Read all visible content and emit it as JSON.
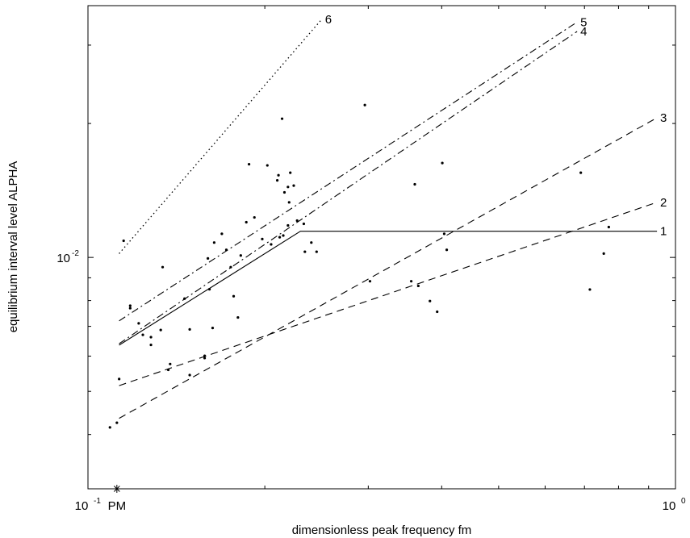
{
  "chart_data": {
    "type": "line",
    "title": "",
    "xlabel": "dimensionless peak frequency fm",
    "ylabel": "equilibrium interval level ALPHA",
    "xscale": "log",
    "yscale": "log",
    "xlim": [
      0.1,
      1.0
    ],
    "ylim": [
      0.00302,
      0.0368
    ],
    "grid": false,
    "legend": "none (lines labeled 1-6 at right end)",
    "x_ticks": [
      {
        "value": 0.1,
        "base": "10",
        "exp": "-1"
      },
      {
        "value": 1.0,
        "base": "10",
        "exp": "0"
      }
    ],
    "y_ticks": [
      {
        "value": 0.01,
        "base": "10",
        "exp": "-2"
      }
    ],
    "series": [
      {
        "label": "1",
        "style": "solid",
        "x": [
          0.113,
          0.23,
          0.93
        ],
        "y": [
          0.00635,
          0.01145,
          0.01145
        ]
      },
      {
        "label": "2",
        "style": "dashed",
        "x": [
          0.113,
          0.93
        ],
        "y": [
          0.00515,
          0.0133
        ]
      },
      {
        "label": "3",
        "style": "dashed",
        "x": [
          0.113,
          0.93
        ],
        "y": [
          0.00435,
          0.0206
        ]
      },
      {
        "label": "4",
        "style": "dash-dot",
        "x": [
          0.113,
          0.68
        ],
        "y": [
          0.0064,
          0.0322
        ]
      },
      {
        "label": "5",
        "style": "dash-dot",
        "x": [
          0.113,
          0.68
        ],
        "y": [
          0.0072,
          0.0338
        ]
      },
      {
        "label": "6",
        "style": "dotted",
        "x": [
          0.113,
          0.25
        ],
        "y": [
          0.0102,
          0.0343
        ]
      }
    ],
    "scatter": {
      "x": [
        0.109,
        0.113,
        0.115,
        0.112,
        0.118,
        0.118,
        0.122,
        0.124,
        0.128,
        0.128,
        0.133,
        0.134,
        0.137,
        0.138,
        0.146,
        0.149,
        0.149,
        0.158,
        0.158,
        0.163,
        0.161,
        0.16,
        0.164,
        0.169,
        0.172,
        0.175,
        0.177,
        0.18,
        0.182,
        0.186,
        0.188,
        0.192,
        0.198,
        0.202,
        0.205,
        0.21,
        0.211,
        0.212,
        0.214,
        0.215,
        0.216,
        0.219,
        0.219,
        0.221,
        0.22,
        0.224,
        0.227,
        0.233,
        0.234,
        0.24,
        0.245,
        0.296,
        0.302,
        0.355,
        0.36,
        0.365,
        0.382,
        0.393,
        0.404,
        0.401,
        0.408,
        0.69,
        0.715,
        0.755,
        0.77
      ],
      "y": [
        0.00415,
        0.00533,
        0.0109,
        0.00425,
        0.00769,
        0.00779,
        0.00711,
        0.0067,
        0.00662,
        0.00636,
        0.00687,
        0.00951,
        0.00559,
        0.00576,
        0.00808,
        0.00544,
        0.00689,
        0.00594,
        0.00601,
        0.00694,
        0.00848,
        0.00995,
        0.0108,
        0.0113,
        0.0104,
        0.00951,
        0.00818,
        0.00733,
        0.0101,
        0.012,
        0.0162,
        0.0123,
        0.011,
        0.0161,
        0.0107,
        0.0149,
        0.0153,
        0.0111,
        0.0205,
        0.0112,
        0.014,
        0.0144,
        0.0118,
        0.0155,
        0.0133,
        0.0145,
        0.0121,
        0.0119,
        0.0103,
        0.0108,
        0.0103,
        0.022,
        0.00884,
        0.00884,
        0.0146,
        0.00863,
        0.00798,
        0.00755,
        0.0113,
        0.0163,
        0.0104,
        0.0155,
        0.00847,
        0.0102,
        0.0117
      ]
    },
    "annotations": [
      {
        "text": "PM",
        "x": 0.112,
        "marker": "asterisk"
      }
    ]
  }
}
